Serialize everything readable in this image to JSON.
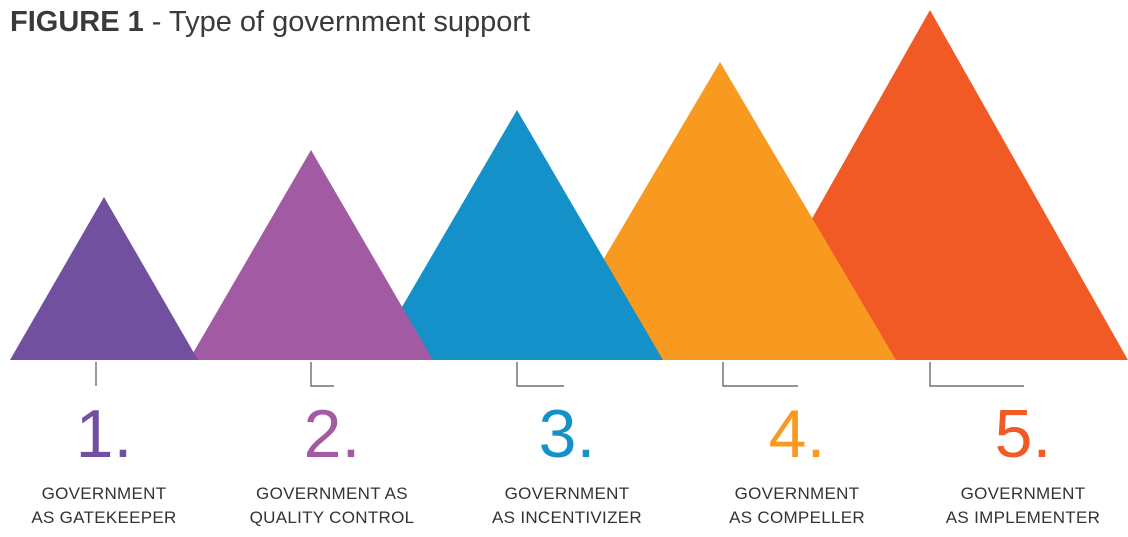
{
  "title": {
    "bold": "FIGURE 1",
    "rest": " - Type of government support"
  },
  "colors": {
    "purple": "#7250a0",
    "violet": "#a25aa2",
    "blue": "#1591c9",
    "orange": "#f89a1f",
    "red_orange": "#f15a24",
    "connector": "#555555"
  },
  "steps": [
    {
      "number": "1.",
      "line1": "GOVERNMENT",
      "line2": "AS GATEKEEPER",
      "color": "#7250a0"
    },
    {
      "number": "2.",
      "line1": "GOVERNMENT AS",
      "line2": "QUALITY CONTROL",
      "color": "#a25aa2"
    },
    {
      "number": "3.",
      "line1": "GOVERNMENT",
      "line2": "AS INCENTIVIZER",
      "color": "#1591c9"
    },
    {
      "number": "4.",
      "line1": "GOVERNMENT",
      "line2": "AS COMPELLER",
      "color": "#f89a1f"
    },
    {
      "number": "5.",
      "line1": "GOVERNMENT",
      "line2": "AS IMPLEMENTER",
      "color": "#f15a24"
    }
  ]
}
